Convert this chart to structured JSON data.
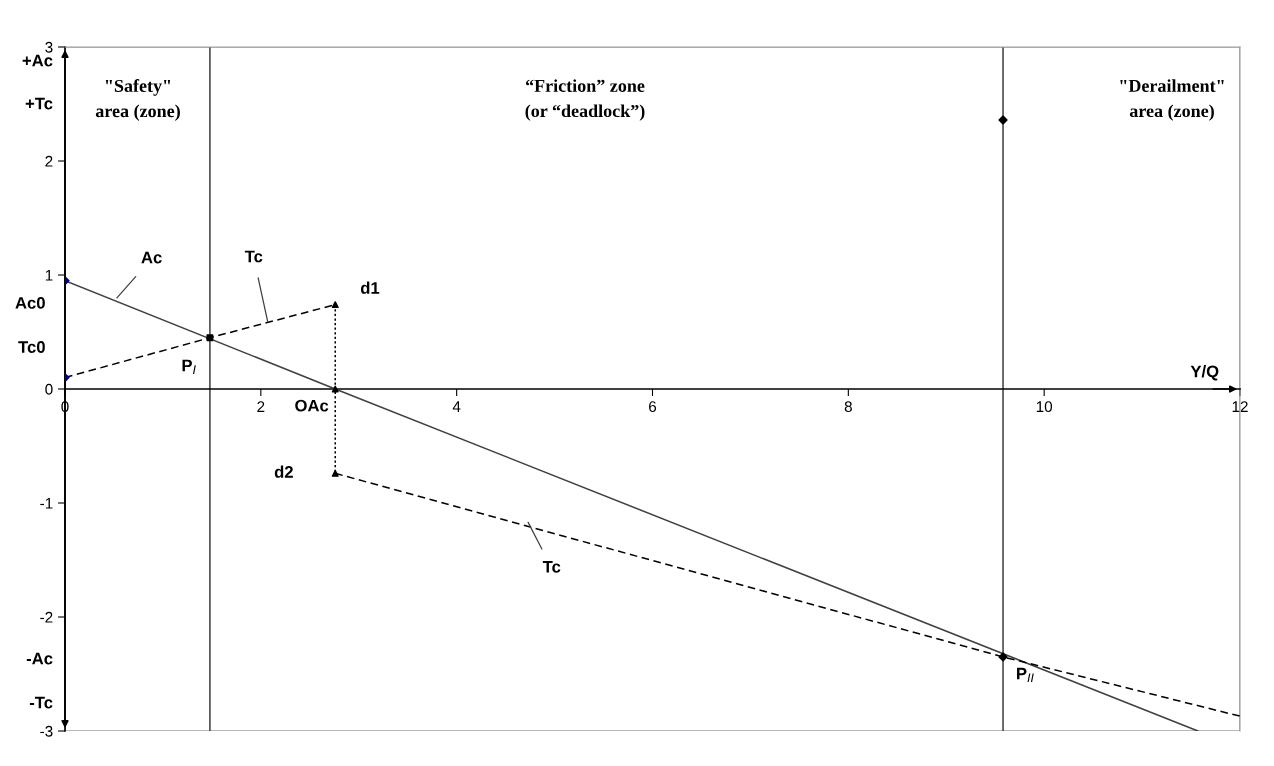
{
  "chart_data": {
    "type": "line",
    "xlabel": "Y/Q",
    "xlim": [
      0,
      12
    ],
    "ylim": [
      -3,
      3
    ],
    "xticks": [
      0,
      2,
      4,
      6,
      8,
      10,
      12
    ],
    "yticks": [
      -3,
      -2,
      -1,
      0,
      1,
      2,
      3
    ],
    "series": [
      {
        "x": [
          0,
          2.76,
          11.57
        ],
        "values": [
          0.95,
          0,
          -3.0
        ],
        "color": "#404040",
        "line_style": "solid",
        "marker": "none"
      },
      {
        "type": "line",
        "x": [
          0,
          1.48,
          2.76
        ],
        "values": [
          0.1,
          0.45,
          0.74
        ],
        "color": "#000000",
        "line_style": "dashed",
        "marker": "none"
      },
      {
        "type": "line",
        "x": [
          2.76,
          2.76
        ],
        "values": [
          0.74,
          -0.74
        ],
        "color": "#000000",
        "line_style": "dotted",
        "marker": "none"
      },
      {
        "type": "line",
        "x": [
          2.76,
          9.58,
          12
        ],
        "values": [
          -0.74,
          -2.35,
          -2.87
        ],
        "color": "#000000",
        "line_style": "dashed",
        "marker": "none"
      },
      {
        "type": "scatter",
        "x": [
          0,
          0
        ],
        "values": [
          0.95,
          0.1
        ],
        "color": "#000080",
        "marker": "diamond"
      },
      {
        "type": "scatter",
        "x": [
          1.48
        ],
        "values": [
          0.45
        ],
        "color": "#000000",
        "marker": "square"
      },
      {
        "type": "scatter",
        "x": [
          2.76,
          2.76,
          2.76
        ],
        "values": [
          0.74,
          0,
          -0.74
        ],
        "color": "#000000",
        "marker": "triangle"
      },
      {
        "type": "scatter",
        "x": [
          9.58,
          9.58
        ],
        "values": [
          -2.35,
          2.36
        ],
        "color": "#000000",
        "marker": "diamond"
      }
    ],
    "ref_lines": [
      {
        "axis": "x",
        "value": 1.48,
        "color": "#404040"
      },
      {
        "axis": "x",
        "value": 9.58,
        "color": "#404040"
      }
    ],
    "annotations": [
      {
        "text": "Ac0",
        "x": 0,
        "y": 0.95
      },
      {
        "text": "Tc0",
        "x": 0,
        "y": 0.1
      },
      {
        "text": "Ac",
        "x": 0.53,
        "y": 0.8
      },
      {
        "text": "Tc",
        "x": 2.07,
        "y": 0.59
      },
      {
        "text": "d1",
        "x": 2.76,
        "y": 0.74
      },
      {
        "text": "P$_{I}$",
        "x": 1.48,
        "y": 0.45
      },
      {
        "text": "OAc",
        "x": 2.76,
        "y": 0
      },
      {
        "text": "d2",
        "x": 2.76,
        "y": -0.74
      },
      {
        "text": "Tc",
        "x": 4.73,
        "y": -1.17
      },
      {
        "text": "P$_{II}$",
        "x": 9.58,
        "y": -2.35
      },
      "+Ac",
      "+Tc",
      "-Ac",
      "-Tc",
      "\"Safety\"\narea (zone)",
      "“Friction” zone\n(or “deadlock”)",
      "\"Derailment\"\narea (zone)"
    ]
  }
}
